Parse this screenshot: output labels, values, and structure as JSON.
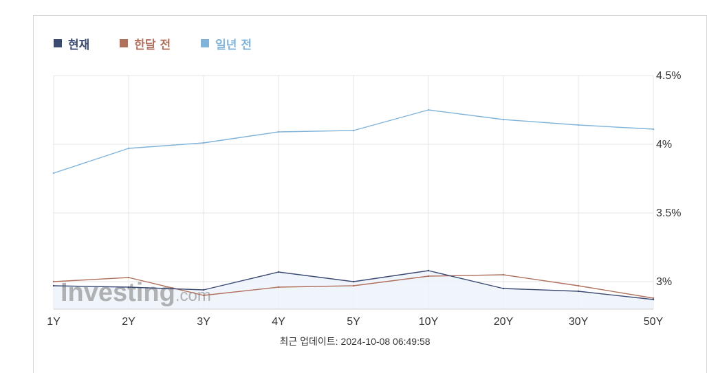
{
  "legend": [
    {
      "label": "현재",
      "color": "#3b4a72"
    },
    {
      "label": "한달 전",
      "color": "#b0705c"
    },
    {
      "label": "일년 전",
      "color": "#7fb3da"
    }
  ],
  "watermark": {
    "brand": "Investing",
    "suffix": ".com"
  },
  "footer": {
    "label": "최근 업데이트:",
    "timestamp": "2024-10-08 06:49:58"
  },
  "chart_data": {
    "type": "line",
    "categories": [
      "1Y",
      "2Y",
      "3Y",
      "4Y",
      "5Y",
      "10Y",
      "20Y",
      "30Y",
      "50Y"
    ],
    "series": [
      {
        "name": "현재",
        "color": "#3b4a72",
        "fill": true,
        "values": [
          2.97,
          2.96,
          2.94,
          3.07,
          3.0,
          3.08,
          2.95,
          2.93,
          2.87
        ]
      },
      {
        "name": "한달 전",
        "color": "#b0705c",
        "fill": false,
        "values": [
          3.0,
          3.03,
          2.9,
          2.96,
          2.97,
          3.04,
          3.05,
          2.97,
          2.88
        ]
      },
      {
        "name": "일년 전",
        "color": "#7fb3da",
        "fill": false,
        "values": [
          3.79,
          3.97,
          4.01,
          4.09,
          4.1,
          4.25,
          4.18,
          4.14,
          4.11
        ]
      }
    ],
    "y_ticks": [
      {
        "value": 4.5,
        "label": "4.5%"
      },
      {
        "value": 4.0,
        "label": "4%"
      },
      {
        "value": 3.5,
        "label": "3.5%"
      },
      {
        "value": 3.0,
        "label": "3%"
      }
    ],
    "ylim": [
      2.8,
      4.5
    ],
    "y_axis_position": "right",
    "grid": true,
    "legend_position": "top-left"
  }
}
